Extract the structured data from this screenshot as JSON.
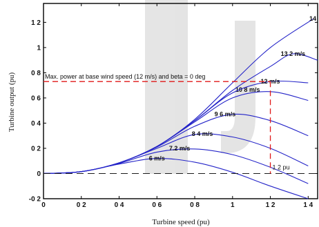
{
  "chart_data": {
    "type": "line",
    "xlabel": "Turbine speed (pu)",
    "ylabel": "Turbine output (pu)",
    "xlim": [
      0,
      1.45
    ],
    "ylim": [
      -0.2,
      1.35
    ],
    "xticks": [
      0,
      0.2,
      0.4,
      0.6,
      0.8,
      1,
      1.2,
      1.4
    ],
    "xtick_labels": [
      "0",
      "0 2",
      "0 4",
      "0 6",
      "0 8",
      "1",
      "1 2",
      "1 4"
    ],
    "yticks": [
      -0.2,
      0,
      0.2,
      0.4,
      0.6,
      0.8,
      1,
      1.2
    ],
    "ytick_labels": [
      "-0 2",
      "0",
      "0 2",
      "0 4",
      "0 6",
      "0 8",
      "1",
      "1 2"
    ],
    "grid": false,
    "line_color": "#2323c8",
    "annotation_color": "#e01818",
    "series": [
      {
        "name": "6 m/s",
        "peak_x": 0.6,
        "peak_y": 0.12,
        "x": [
          0,
          0.2,
          0.4,
          0.6,
          0.8,
          1.0,
          1.2,
          1.4
        ],
        "y": [
          0,
          0.015,
          0.075,
          0.12,
          0.09,
          0.01,
          -0.1,
          -0.2
        ]
      },
      {
        "name": "7.2 m/s",
        "peak_x": 0.72,
        "peak_y": 0.2,
        "x": [
          0,
          0.2,
          0.4,
          0.6,
          0.8,
          1.0,
          1.2,
          1.4
        ],
        "y": [
          0,
          0.015,
          0.08,
          0.17,
          0.195,
          0.15,
          0.05,
          -0.08
        ]
      },
      {
        "name": "8 4 m/s",
        "peak_x": 0.84,
        "peak_y": 0.315,
        "x": [
          0,
          0.2,
          0.4,
          0.6,
          0.8,
          1.0,
          1.2,
          1.4
        ],
        "y": [
          0,
          0.015,
          0.085,
          0.2,
          0.31,
          0.29,
          0.2,
          0.06
        ]
      },
      {
        "name": "9 6 m/s",
        "peak_x": 0.96,
        "peak_y": 0.47,
        "x": [
          0,
          0.2,
          0.4,
          0.6,
          0.8,
          1.0,
          1.2,
          1.4
        ],
        "y": [
          0,
          0.015,
          0.085,
          0.21,
          0.375,
          0.47,
          0.42,
          0.3
        ]
      },
      {
        "name": "10 8 m/s",
        "peak_x": 1.08,
        "peak_y": 0.665,
        "x": [
          0,
          0.2,
          0.4,
          0.6,
          0.8,
          1.0,
          1.2,
          1.4
        ],
        "y": [
          0,
          0.015,
          0.085,
          0.215,
          0.41,
          0.6,
          0.65,
          0.58
        ]
      },
      {
        "name": "12 m/s",
        "peak_x": 1.2,
        "peak_y": 0.73,
        "x": [
          0,
          0.2,
          0.4,
          0.6,
          0.8,
          1.0,
          1.2,
          1.4
        ],
        "y": [
          0,
          0.015,
          0.085,
          0.215,
          0.42,
          0.64,
          0.73,
          0.72
        ]
      },
      {
        "name": "13 2 m/s",
        "peak_x": 1.32,
        "peak_y": 0.95,
        "x": [
          0,
          0.2,
          0.4,
          0.6,
          0.8,
          1.0,
          1.2,
          1.32,
          1.45
        ],
        "y": [
          0,
          0.015,
          0.085,
          0.215,
          0.42,
          0.66,
          0.85,
          0.95,
          0.9
        ]
      },
      {
        "name": "14",
        "peak_x": 1.43,
        "peak_y": 1.23,
        "x": [
          0,
          0.2,
          0.4,
          0.6,
          0.8,
          1.0,
          1.2,
          1.43
        ],
        "y": [
          0,
          0.015,
          0.085,
          0.215,
          0.43,
          0.72,
          1.0,
          1.23
        ]
      }
    ],
    "annotations": {
      "max_power_text": "Max. power at base wind speed (12 m/s) and beta = 0 deg",
      "point_label": "1 2 pu",
      "max_power_point": {
        "x": 1.2,
        "y": 0.73
      }
    },
    "watermark": "IJ"
  }
}
